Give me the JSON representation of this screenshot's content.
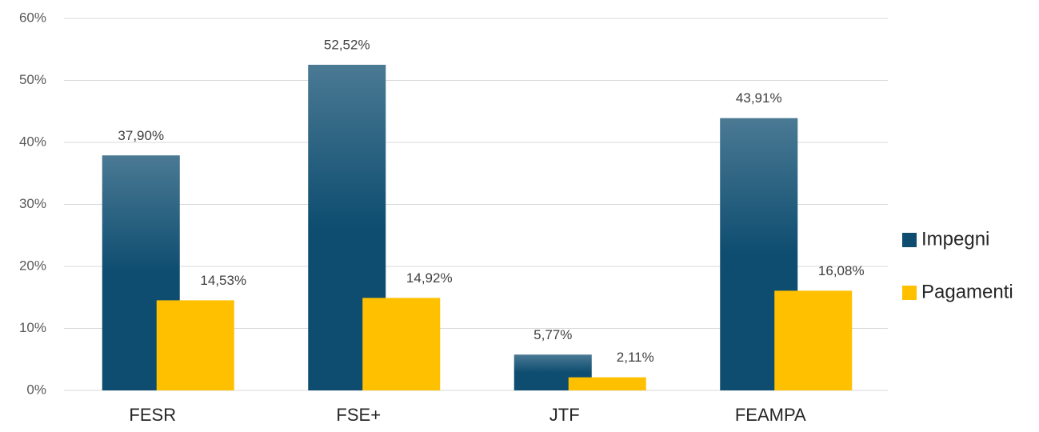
{
  "chart_data": {
    "type": "bar",
    "categories": [
      "FESR",
      "FSE+",
      "JTF",
      "FEAMPA"
    ],
    "series": [
      {
        "name": "Impegni",
        "color": "#0e4d70",
        "values": [
          37.9,
          52.52,
          5.77,
          43.91
        ],
        "value_labels": [
          "37,90%",
          "52,52%",
          "5,77%",
          "43,91%"
        ]
      },
      {
        "name": "Pagamenti",
        "color": "#ffc000",
        "values": [
          14.53,
          14.92,
          2.11,
          16.08
        ],
        "value_labels": [
          "14,53%",
          "14,92%",
          "2,11%",
          "16,08%"
        ]
      }
    ],
    "ylim": [
      0,
      60
    ],
    "yticks": [
      {
        "value": 0,
        "label": "0%"
      },
      {
        "value": 10,
        "label": "10%"
      },
      {
        "value": 20,
        "label": "20%"
      },
      {
        "value": 30,
        "label": "30%"
      },
      {
        "value": 40,
        "label": "40%"
      },
      {
        "value": 50,
        "label": "50%"
      },
      {
        "value": 60,
        "label": "60%"
      }
    ],
    "grid": true,
    "legend": "right"
  }
}
